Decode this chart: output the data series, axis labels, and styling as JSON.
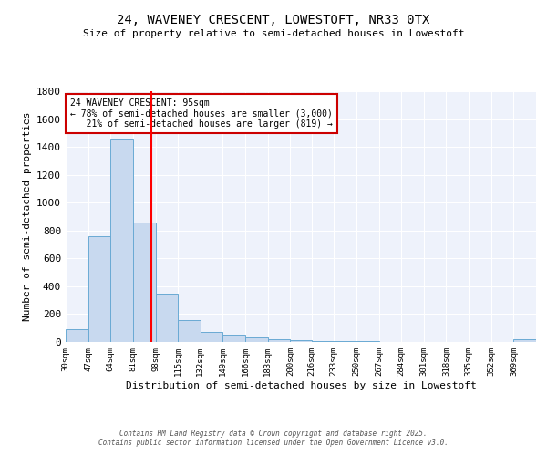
{
  "title1": "24, WAVENEY CRESCENT, LOWESTOFT, NR33 0TX",
  "title2": "Size of property relative to semi-detached houses in Lowestoft",
  "xlabel": "Distribution of semi-detached houses by size in Lowestoft",
  "ylabel": "Number of semi-detached properties",
  "bin_edges": [
    30,
    47,
    64,
    81,
    98,
    115,
    132,
    149,
    166,
    183,
    200,
    216,
    233,
    250,
    267,
    284,
    301,
    318,
    335,
    352,
    369,
    386
  ],
  "bin_labels": [
    "30sqm",
    "47sqm",
    "64sqm",
    "81sqm",
    "98sqm",
    "115sqm",
    "132sqm",
    "149sqm",
    "166sqm",
    "183sqm",
    "200sqm",
    "216sqm",
    "233sqm",
    "250sqm",
    "267sqm",
    "284sqm",
    "301sqm",
    "318sqm",
    "335sqm",
    "352sqm",
    "369sqm"
  ],
  "bar_heights": [
    90,
    760,
    1460,
    860,
    350,
    155,
    70,
    50,
    30,
    20,
    12,
    8,
    5,
    4,
    3,
    2,
    2,
    1,
    1,
    1,
    20
  ],
  "bar_color": "#c8d9ef",
  "bar_edge_color": "#6aaad4",
  "red_line_x": 95,
  "annotation_line1": "24 WAVENEY CRESCENT: 95sqm",
  "annotation_line2": "← 78% of semi-detached houses are smaller (3,000)",
  "annotation_line3": "21% of semi-detached houses are larger (819) →",
  "annotation_box_color": "#ffffff",
  "annotation_box_edge": "#cc0000",
  "background_color": "#eef2fb",
  "grid_color": "#ffffff",
  "ylim": [
    0,
    1800
  ],
  "yticks": [
    0,
    200,
    400,
    600,
    800,
    1000,
    1200,
    1400,
    1600,
    1800
  ],
  "footer1": "Contains HM Land Registry data © Crown copyright and database right 2025.",
  "footer2": "Contains public sector information licensed under the Open Government Licence v3.0."
}
